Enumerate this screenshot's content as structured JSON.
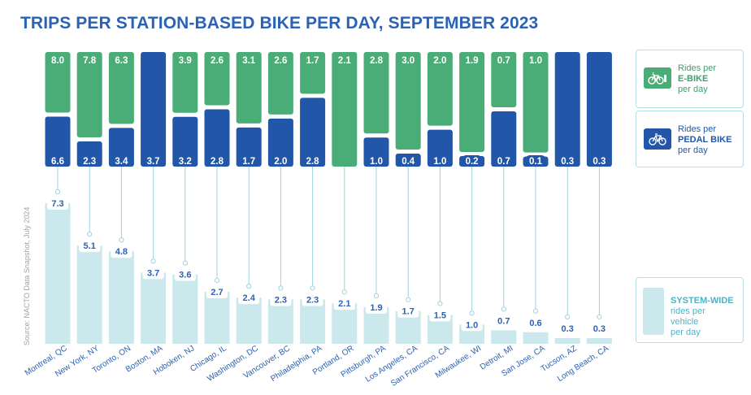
{
  "title": "TRIPS PER STATION-BASED BIKE PER DAY, SEPTEMBER 2023",
  "source": "Source: NACTO Data Snapshot, July 2024",
  "colors": {
    "ebike": "#4aad78",
    "pedal": "#2256a8",
    "system": "#cbe8ed",
    "system_label": "#2b62b5",
    "connector": "#9fd3dc",
    "title": "#2b62b5"
  },
  "legend": {
    "ebike": {
      "line1": "Rides per",
      "line2": "E-BIKE",
      "line3": "per day",
      "icon": "ebike-icon"
    },
    "pedal": {
      "line1": "Rides per",
      "line2": "PEDAL BIKE",
      "line3": "per day",
      "icon": "bicycle-icon"
    },
    "system": {
      "line1": "SYSTEM-WIDE",
      "line2": "rides per",
      "line3": "vehicle",
      "line4": "per day"
    }
  },
  "chart_data": {
    "type": "bar",
    "title": "TRIPS PER STATION-BASED BIKE PER DAY, SEPTEMBER 2023",
    "categories": [
      "Montreal, QC",
      "New York, NY",
      "Toronto, ON",
      "Boston, MA",
      "Hoboken, NJ",
      "Chicago, IL",
      "Washington, DC",
      "Vancouver, BC",
      "Philadelphia, PA",
      "Portland, OR",
      "Pittsburgh, PA",
      "Los Angeles, CA",
      "San Francisco, CA",
      "Milwaukee, WI",
      "Detroit, MI",
      "San Jose, CA",
      "Tucson, AZ",
      "Long Beach, CA"
    ],
    "series": [
      {
        "name": "Rides per E-BIKE per day",
        "values": [
          8.0,
          7.8,
          6.3,
          null,
          3.9,
          2.6,
          3.1,
          2.6,
          1.7,
          2.1,
          2.8,
          3.0,
          2.0,
          1.9,
          0.7,
          1.0,
          null,
          null
        ],
        "labels": [
          "8.0",
          "7.8",
          "6.3",
          "",
          "3.9",
          "2.6",
          "3.1",
          "2.6",
          "1.7",
          "2.1",
          "2.8",
          "3.0",
          "2.0",
          "1.9",
          "0.7",
          "1.0",
          "",
          ""
        ]
      },
      {
        "name": "Rides per PEDAL BIKE per day",
        "values": [
          6.6,
          2.3,
          3.4,
          3.7,
          3.2,
          2.8,
          1.7,
          2.0,
          2.8,
          null,
          1.0,
          0.4,
          1.0,
          0.2,
          0.7,
          0.1,
          0.3,
          0.3
        ],
        "labels": [
          "6.6",
          "2.3",
          "3.4",
          "3.7",
          "3.2",
          "2.8",
          "1.7",
          "2.0",
          "2.8",
          "",
          "1.0",
          "0.4",
          "1.0",
          "0.2",
          "0.7",
          "0.1",
          "0.3",
          "0.3"
        ]
      },
      {
        "name": "SYSTEM-WIDE rides per vehicle per day",
        "values": [
          7.3,
          5.1,
          4.8,
          3.7,
          3.6,
          2.7,
          2.4,
          2.3,
          2.3,
          2.1,
          1.9,
          1.7,
          1.5,
          1.0,
          0.7,
          0.6,
          0.3,
          0.3
        ],
        "labels": [
          "7.3",
          "5.1",
          "4.8",
          "3.7",
          "3.6",
          "2.7",
          "2.4",
          "2.3",
          "2.3",
          "2.1",
          "1.9",
          "1.7",
          "1.5",
          "1.0",
          "0.7",
          "0.6",
          "0.3",
          "0.3"
        ]
      }
    ],
    "ylim_system": [
      0,
      7.3
    ]
  }
}
